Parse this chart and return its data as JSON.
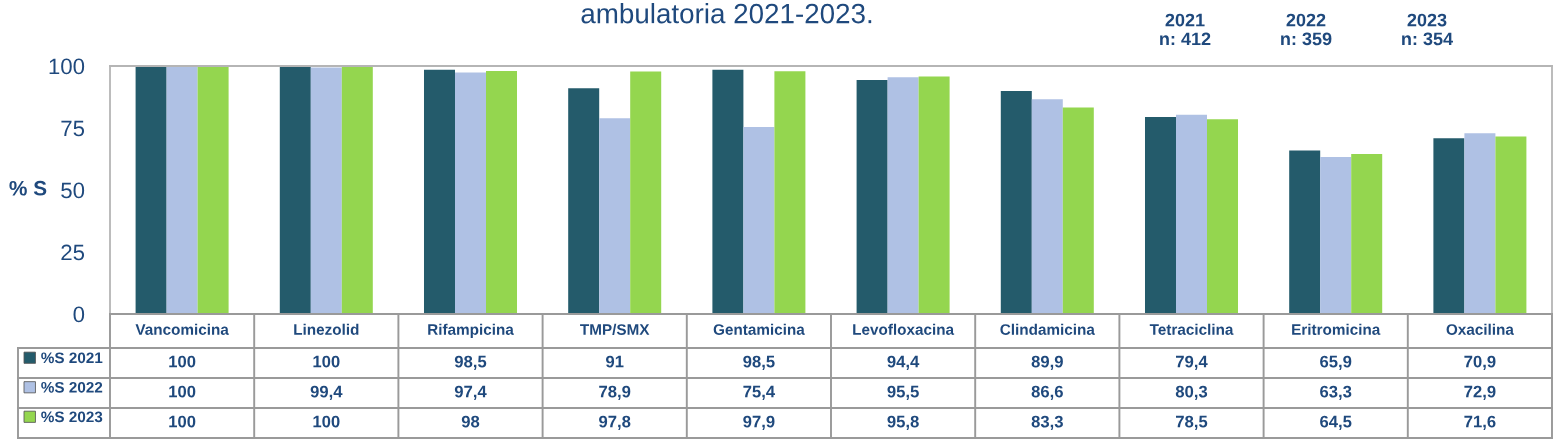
{
  "chart_data": {
    "type": "bar",
    "title": "ambulatoria 2021-2023.",
    "ylabel": "% S",
    "categories": [
      "Vancomicina",
      "Linezolid",
      "Rifampicina",
      "TMP/SMX",
      "Gentamicina",
      "Levofloxacina",
      "Clindamicina",
      "Tetraciclina",
      "Eritromicina",
      "Oxacilina"
    ],
    "series": [
      {
        "name": "%S 2021",
        "color": "#245b6b",
        "values": [
          100,
          100,
          98.5,
          91,
          98.5,
          94.4,
          89.9,
          79.4,
          65.9,
          70.9
        ],
        "value_labels": [
          "100",
          "100",
          "98,5",
          "91",
          "98,5",
          "94,4",
          "89,9",
          "79,4",
          "65,9",
          "70,9"
        ]
      },
      {
        "name": "%S 2022",
        "color": "#afc1e4",
        "values": [
          100,
          99.4,
          97.4,
          78.9,
          75.4,
          95.5,
          86.6,
          80.3,
          63.3,
          72.9
        ],
        "value_labels": [
          "100",
          "99,4",
          "97,4",
          "78,9",
          "75,4",
          "95,5",
          "86,6",
          "80,3",
          "63,3",
          "72,9"
        ]
      },
      {
        "name": "%S 2023",
        "color": "#94d64f",
        "values": [
          100,
          100,
          98,
          97.8,
          97.9,
          95.8,
          83.3,
          78.5,
          64.5,
          71.6
        ],
        "value_labels": [
          "100",
          "100",
          "98",
          "97,8",
          "97,9",
          "95,8",
          "83,3",
          "78,5",
          "64,5",
          "71,6"
        ]
      }
    ],
    "ylim": [
      0,
      100
    ],
    "yticks": [
      0,
      25,
      50,
      75,
      100
    ],
    "grid": false,
    "legend": "bottom left",
    "annotations": [
      "2021\nn: 412",
      "2022\nn: 359",
      "2023\nn: 354"
    ]
  }
}
